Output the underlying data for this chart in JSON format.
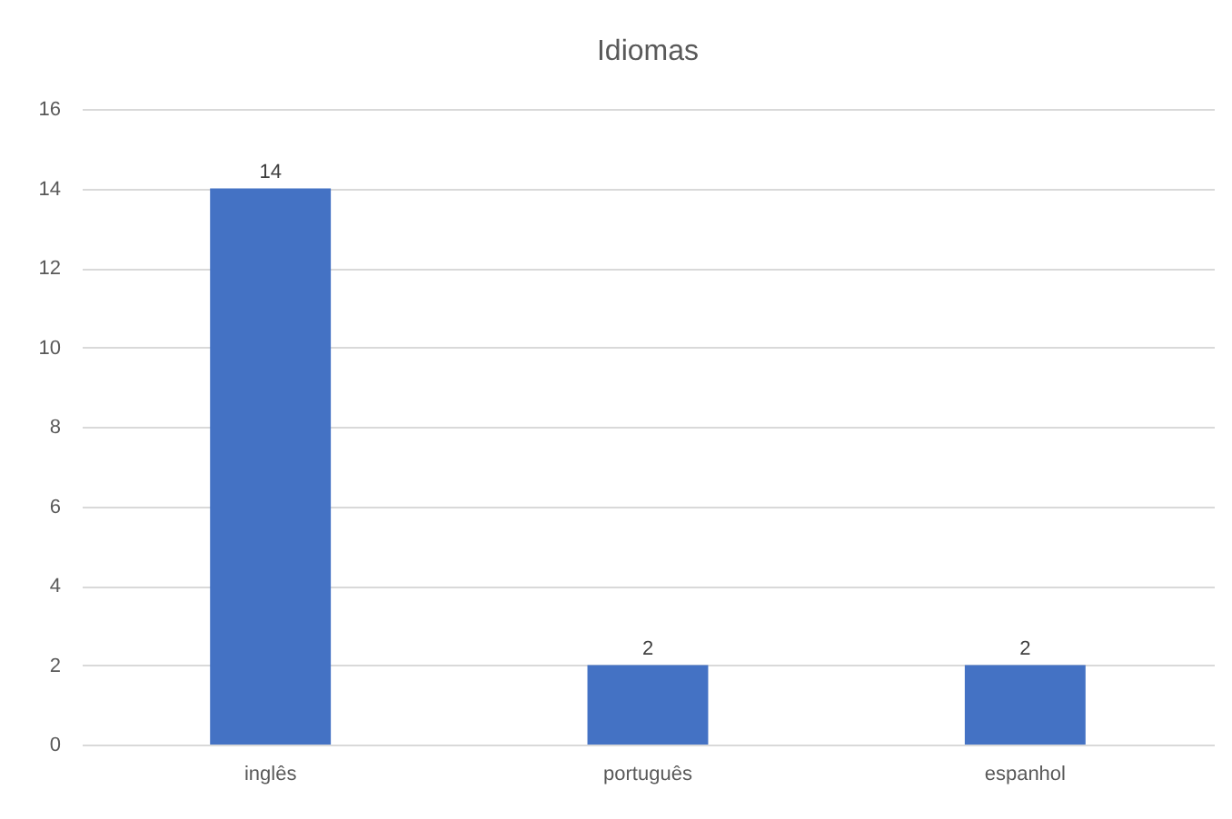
{
  "chart_data": {
    "type": "bar",
    "title": "Idiomas",
    "categories": [
      "inglês",
      "português",
      "espanhol"
    ],
    "values": [
      14,
      2,
      2
    ],
    "color": "#4472c4",
    "ylim": [
      0,
      16
    ],
    "yticks": [
      0,
      2,
      4,
      6,
      8,
      10,
      12,
      14,
      16
    ],
    "grid": "y",
    "data_labels": true
  }
}
